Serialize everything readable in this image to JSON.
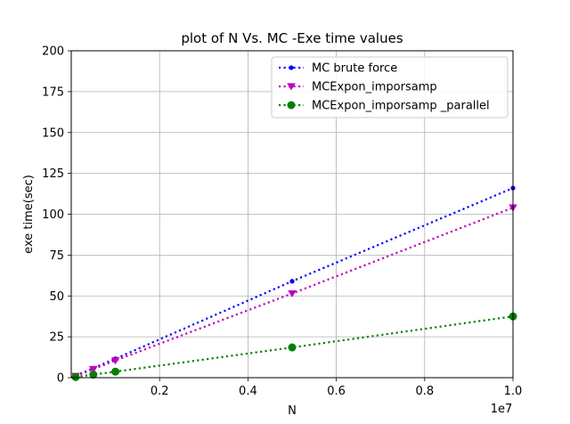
{
  "chart_data": {
    "type": "line",
    "title": "plot of N Vs. MC -Exe time values",
    "xlabel": "N",
    "ylabel": "exe time(sec)",
    "x_offset_label": "1e7",
    "xlim": [
      0,
      1.0
    ],
    "ylim": [
      0,
      200
    ],
    "xticks": [
      0.2,
      0.4,
      0.6,
      0.8,
      1.0
    ],
    "xtick_labels": [
      "0.2",
      "0.4",
      "0.6",
      "0.8",
      "1.0"
    ],
    "yticks": [
      0,
      25,
      50,
      75,
      100,
      125,
      150,
      175,
      200
    ],
    "ytick_labels": [
      "0",
      "25",
      "50",
      "75",
      "100",
      "125",
      "150",
      "175",
      "200"
    ],
    "grid": true,
    "legend_position": "top-right",
    "x": [
      0.01,
      0.05,
      0.1,
      0.5,
      1.0
    ],
    "series": [
      {
        "name": "MC brute force",
        "values": [
          1.2,
          5.8,
          11.6,
          59.0,
          116.0
        ],
        "color": "#0000ff",
        "marker": "dot"
      },
      {
        "name": "MCExpon_imporsamp",
        "values": [
          1.0,
          5.2,
          10.5,
          51.5,
          104.0
        ],
        "color": "#bf00bf",
        "marker": "triangle-down"
      },
      {
        "name": "MCExpon_imporsamp _parallel",
        "values": [
          0.4,
          1.9,
          3.7,
          18.5,
          37.5
        ],
        "color": "#008000",
        "marker": "circle"
      }
    ]
  }
}
